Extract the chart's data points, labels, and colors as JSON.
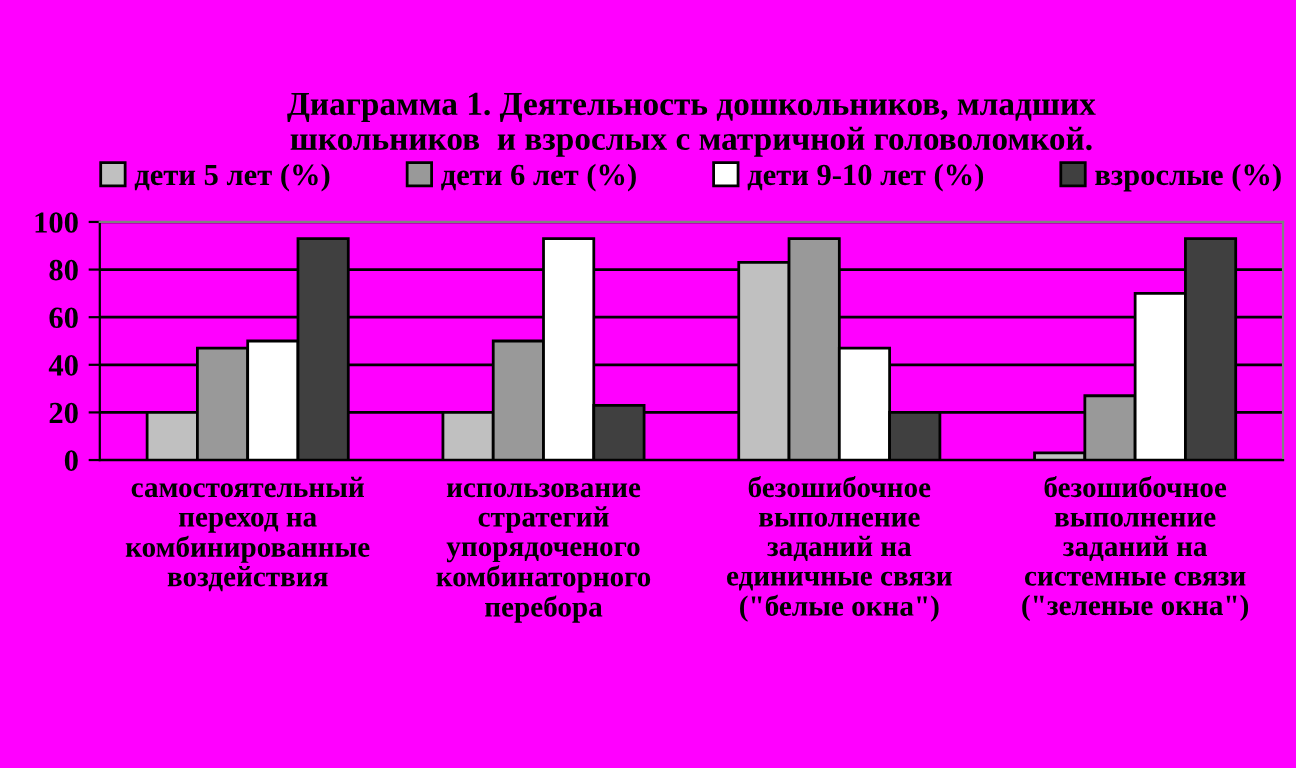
{
  "chart_data": {
    "type": "bar",
    "title": "Диаграмма 1. Деятельность дошкольников, младших\nшкольников  и взрослых с матричной головоломкой.",
    "categories": [
      "самостоятельный\nпереход на\nкомбинированные\nвоздействия",
      "использование\nстратегий\nупорядоченого\nкомбинаторного\nперебора",
      "безошибочное\nвыполнение\nзаданий на\nединичные связи\n(\"белые окна\")",
      "безошибочное\nвыполнение\nзаданий на\nсистемные связи\n(\"зеленые окна\")"
    ],
    "series": [
      {
        "name": "дети 5 лет (%)",
        "color": "#c0c0c0",
        "values": [
          20,
          20,
          83,
          3
        ]
      },
      {
        "name": "дети 6 лет (%)",
        "color": "#999999",
        "values": [
          47,
          50,
          93,
          27
        ]
      },
      {
        "name": "дети 9-10 лет (%)",
        "color": "#ffffff",
        "values": [
          50,
          93,
          47,
          70
        ]
      },
      {
        "name": "взрослые (%)",
        "color": "#404040",
        "values": [
          93,
          23,
          20,
          93
        ]
      }
    ],
    "ylim": [
      0,
      100
    ],
    "yticks": [
      0,
      20,
      40,
      60,
      80,
      100
    ],
    "grid": "y",
    "legend": "top"
  }
}
